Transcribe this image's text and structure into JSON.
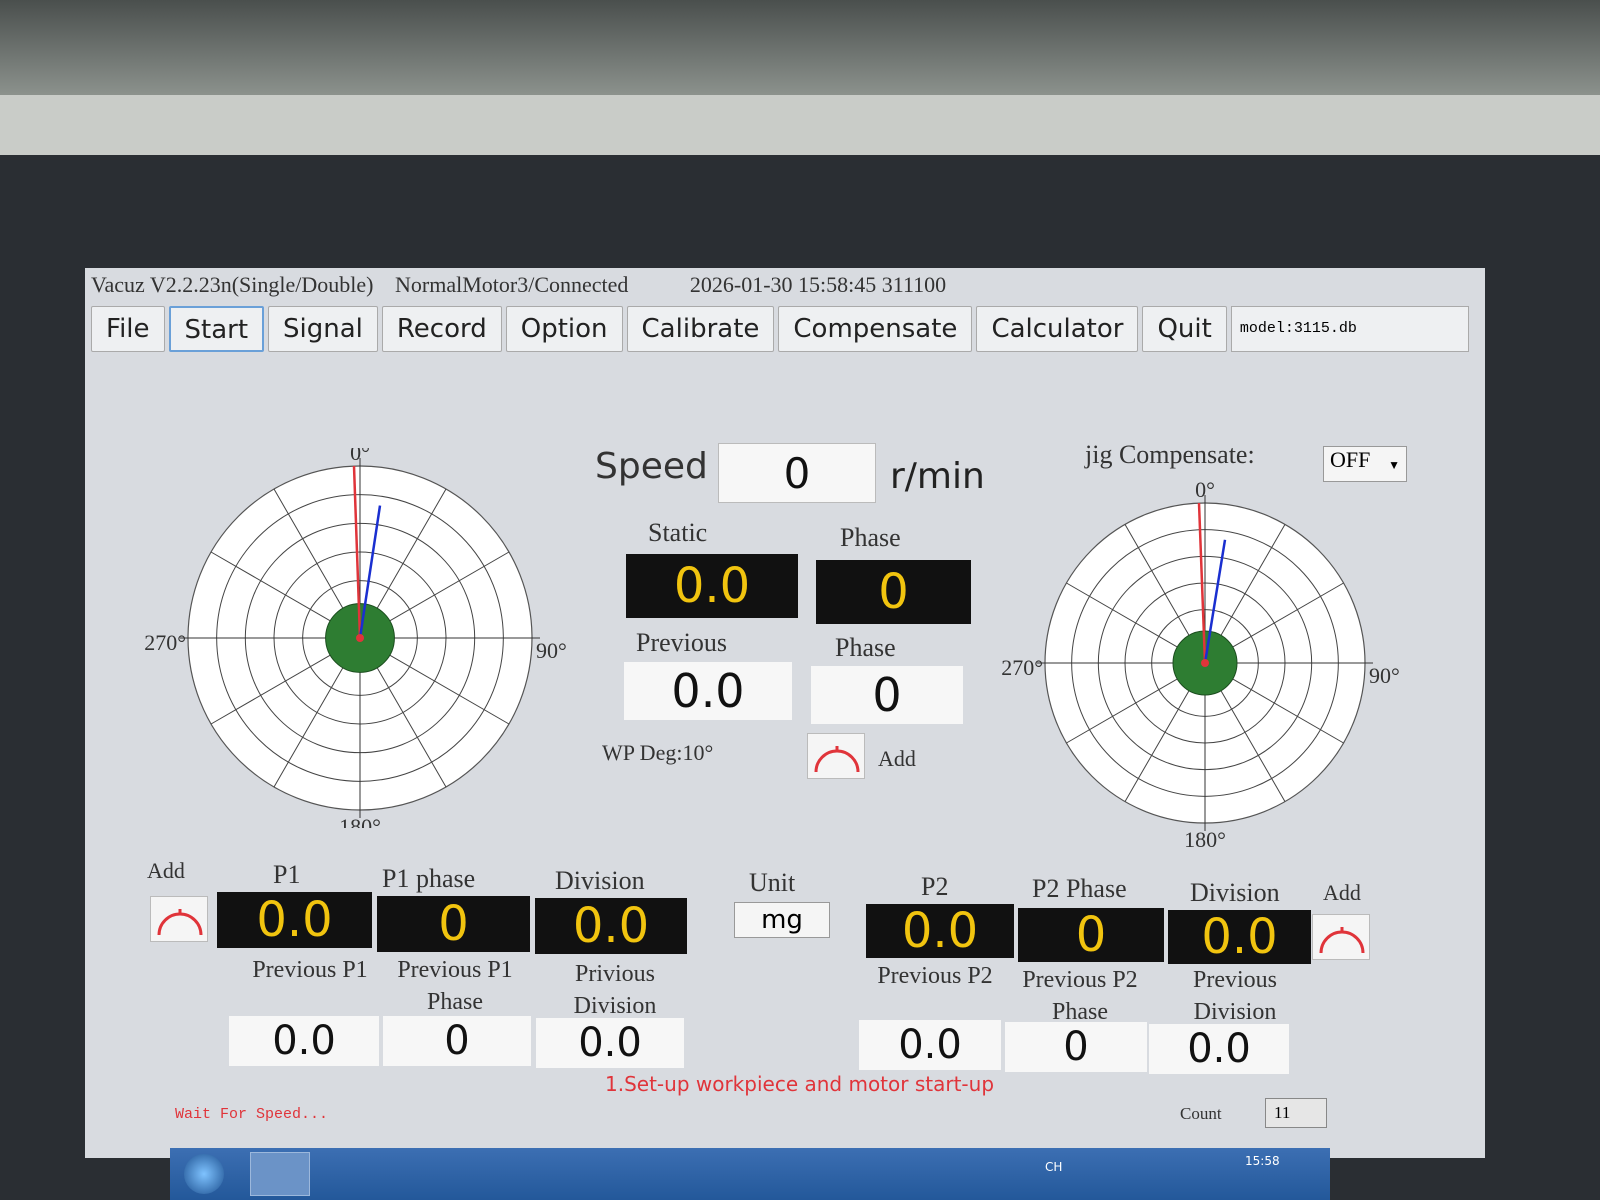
{
  "window": {
    "app_name": "Vacuz V2.2.23n(Single/Double)",
    "motor_status": "NormalMotor3/Connected",
    "datetime": "2026-01-30 15:58:45 311100"
  },
  "menu": [
    "File",
    "Start",
    "Signal",
    "Record",
    "Option",
    "Calibrate",
    "Compensate",
    "Calculator",
    "Quit"
  ],
  "model": "model:3115.db",
  "speed": {
    "label": "Speed",
    "value": "0",
    "unit": "r/min"
  },
  "jig": {
    "label": "jig Compensate:",
    "value": "OFF"
  },
  "center": {
    "static_label": "Static",
    "static_value": "0.0",
    "phase_label": "Phase",
    "phase_value": "0",
    "previous_label": "Previous",
    "previous_value": "0.0",
    "prev_phase_label": "Phase",
    "prev_phase_value": "0",
    "wp_deg": "WP Deg:10°",
    "add_label": "Add"
  },
  "polar_labels": {
    "top": "0°",
    "right": "90°",
    "bottom": "180°",
    "left": "270°"
  },
  "left": {
    "add_label": "Add",
    "p1_label": "P1",
    "p1_value": "0.0",
    "p1_phase_label": "P1 phase",
    "p1_phase_value": "0",
    "division_label": "Division",
    "division_value": "0.0",
    "prev_p1_label": "Previous P1",
    "prev_p1_value": "0.0",
    "prev_p1_phase_label": "Previous P1 Phase",
    "prev_p1_phase_value": "0",
    "prev_division_label": "Privious Division",
    "prev_division_value": "0.0"
  },
  "unit": {
    "label": "Unit",
    "value": "mg"
  },
  "right": {
    "add_label": "Add",
    "p2_label": "P2",
    "p2_value": "0.0",
    "p2_phase_label": "P2 Phase",
    "p2_phase_value": "0",
    "division_label": "Division",
    "division_value": "0.0",
    "prev_p2_label": "Previous P2",
    "prev_p2_value": "0.0",
    "prev_p2_phase_label": "Previous P2 Phase",
    "prev_p2_phase_value": "0",
    "prev_division_label": "Previous Division",
    "prev_division_value": "0.0"
  },
  "instruction": "1.Set-up workpiece and motor start-up",
  "status": "Wait For Speed...",
  "count": {
    "label": "Count",
    "value": "11"
  },
  "taskbar": {
    "lang": "CH",
    "time": "15:58"
  }
}
